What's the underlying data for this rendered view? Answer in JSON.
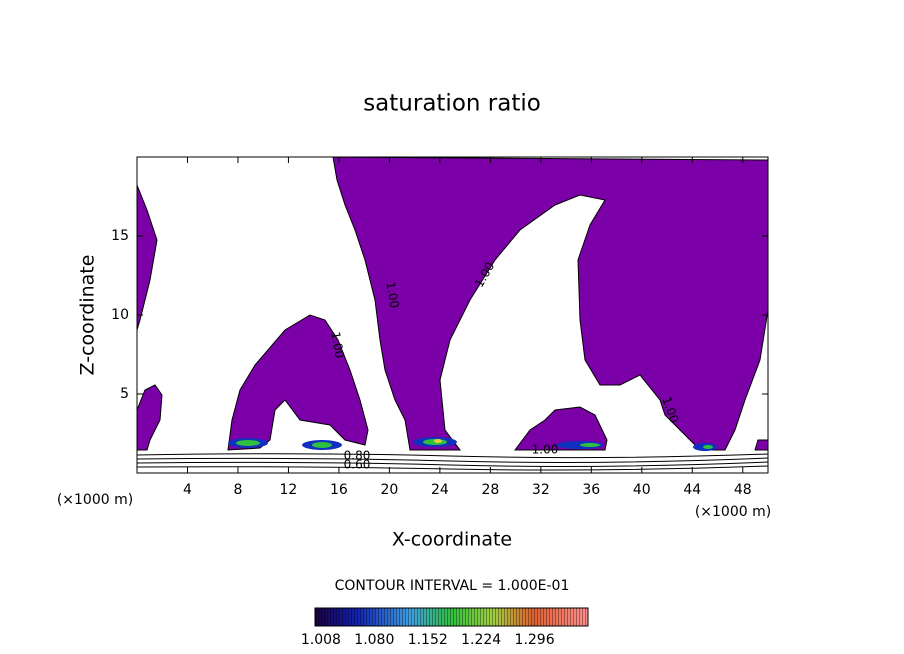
{
  "chart_data": {
    "type": "contour",
    "title": "saturation ratio",
    "x_label": "X-coordinate",
    "y_label": "Z-coordinate",
    "x_unit": "(×1000 m)",
    "xlim": [
      0,
      50
    ],
    "ylim": [
      0,
      20
    ],
    "xticks": [
      4,
      8,
      12,
      16,
      20,
      24,
      28,
      32,
      36,
      40,
      44,
      48
    ],
    "yticks": [
      5,
      10,
      15
    ],
    "fill_color": "#7b00a8",
    "contour_labels": [
      "1.00",
      "1.00",
      "1.00",
      "1.00",
      "1.00",
      "0.80",
      "0.60"
    ],
    "contour_interval": "CONTOUR INTERVAL = 1.000E-01",
    "colorbar_ticks": [
      1.008,
      {
        "value": 1.08,
        "label": "1.080"
      },
      1.152,
      1.224,
      1.296
    ]
  }
}
